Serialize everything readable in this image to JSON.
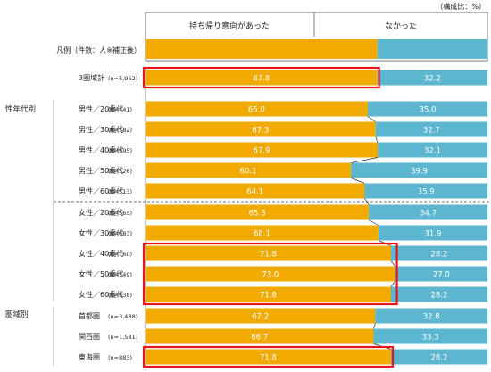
{
  "unit_note": "（構成比：%）",
  "legend": {
    "prefix": "凡例（件数：人※補正後）",
    "yes_label": "持ち帰り意向があった",
    "no_label": "なかった"
  },
  "colors": {
    "yes": "#f0aa00",
    "no": "#5cb6d0",
    "highlight": "#e8141e",
    "connector": "#333333",
    "grid": "#999999"
  },
  "groups": [
    {
      "label": ""
    },
    {
      "label": "性年代別"
    },
    {
      "label": "圏域別"
    }
  ],
  "chart_data": {
    "type": "bar",
    "stacked": true,
    "orientation": "horizontal",
    "xlim": [
      0,
      100
    ],
    "series": [
      {
        "name": "持ち帰り意向があった",
        "values": [
          67.8,
          65.0,
          67.3,
          67.9,
          60.1,
          64.1,
          65.3,
          68.1,
          71.8,
          73.0,
          71.8,
          67.2,
          66.7,
          71.8
        ]
      },
      {
        "name": "なかった",
        "values": [
          32.2,
          35.0,
          32.7,
          32.1,
          39.9,
          35.9,
          34.7,
          31.9,
          28.2,
          27.0,
          28.2,
          32.8,
          33.3,
          28.2
        ]
      }
    ],
    "rows": [
      {
        "label": "3圏域計",
        "n": "(n=5,952)",
        "group": 0,
        "yes": 67.8,
        "no": 32.2,
        "yes_text": "67.8",
        "no_text": "32.2"
      },
      {
        "label": "男性／20歳代",
        "n": "(n=441)",
        "group": 1,
        "yes": 65.0,
        "no": 35.0,
        "yes_text": "65.0",
        "no_text": "35.0"
      },
      {
        "label": "男性／30歳代",
        "n": "(n=582)",
        "group": 1,
        "yes": 67.3,
        "no": 32.7,
        "yes_text": "67.3",
        "no_text": "32.7"
      },
      {
        "label": "男性／40歳代",
        "n": "(n=695)",
        "group": 1,
        "yes": 67.9,
        "no": 32.1,
        "yes_text": "67.9",
        "no_text": "32.1"
      },
      {
        "label": "男性／50歳代",
        "n": "(n=526)",
        "group": 1,
        "yes": 60.1,
        "no": 39.9,
        "yes_text": "60.1",
        "no_text": "39.9"
      },
      {
        "label": "男性／60歳代",
        "n": "(n=513)",
        "group": 1,
        "yes": 64.1,
        "no": 35.9,
        "yes_text": "64.1",
        "no_text": "35.9"
      },
      {
        "label": "女性／20歳代",
        "n": "(n=565)",
        "group": 1,
        "yes": 65.3,
        "no": 34.7,
        "yes_text": "65.3",
        "no_text": "34.7"
      },
      {
        "label": "女性／30歳代",
        "n": "(n=683)",
        "group": 1,
        "yes": 68.1,
        "no": 31.9,
        "yes_text": "68.1",
        "no_text": "31.9"
      },
      {
        "label": "女性／40歳代",
        "n": "(n=760)",
        "group": 1,
        "yes": 71.8,
        "no": 28.2,
        "yes_text": "71.8",
        "no_text": "28.2"
      },
      {
        "label": "女性／50歳代",
        "n": "(n=549)",
        "group": 1,
        "yes": 73.0,
        "no": 27.0,
        "yes_text": "73.0",
        "no_text": "27.0"
      },
      {
        "label": "女性／60歳代",
        "n": "(n=638)",
        "group": 1,
        "yes": 71.8,
        "no": 28.2,
        "yes_text": "71.8",
        "no_text": "28.2"
      },
      {
        "label": "首都圏",
        "n": "(n=3,488)",
        "group": 2,
        "yes": 67.2,
        "no": 32.8,
        "yes_text": "67.2",
        "no_text": "32.8"
      },
      {
        "label": "関西圏",
        "n": "(n=1,581)",
        "group": 2,
        "yes": 66.7,
        "no": 33.3,
        "yes_text": "66.7",
        "no_text": "33.3"
      },
      {
        "label": "東海圏",
        "n": "(n=883)",
        "group": 2,
        "yes": 71.8,
        "no": 28.2,
        "yes_text": "71.8",
        "no_text": "28.2"
      }
    ],
    "highlight_boxes": [
      {
        "from_row": 0,
        "to_row": 0
      },
      {
        "from_row": 8,
        "to_row": 10
      },
      {
        "from_row": 13,
        "to_row": 13
      }
    ]
  }
}
